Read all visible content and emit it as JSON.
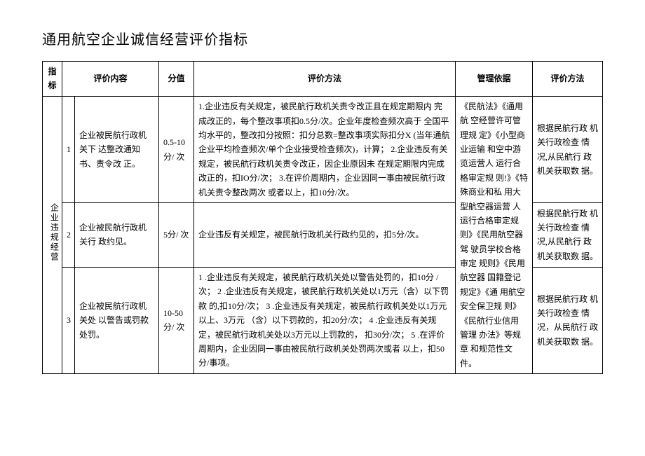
{
  "title": "通用航空企业诚信经营评价指标",
  "headers": {
    "indicator": "指标",
    "content": "评价内容",
    "score": "分值",
    "method": "评价方法",
    "basis": "管理依据",
    "method2": "评价方法"
  },
  "group_label": "企业违规经营",
  "rows": [
    {
      "num": "1",
      "content": "企业被民航行政机关下 达整改通知书、责令改 正。",
      "score": "0.5-10 分/ 次",
      "method": "1.企业违反有关规定，被民航行政机关责令改正且在规定期限内 完成改正的，每个整改事项扣0.5分/次。企业年度检查频次高于 全国平均水平的，整改扣分按照：扣分总数=整改事项实际扣分X (当年通航企业平均检查频次/单个企业接受检查频次)，计算；\n2.企业违反有关规定，被民航行政机关责令改正，因企业原因未 在规定期限内完成改正的，扣IO分/次；\n3.在评价周期内，企业因同一事由被民航行政机关责令整改两次 或者以上，扣10分/次。",
      "method2": "根据民航行政 机关行政检查 情况,从民航行 政机关获取数 据。"
    },
    {
      "num": "2",
      "content": "企业被民航行政机关行 政约见。",
      "score": "5分/ 次",
      "method": "企业违反有关规定，被民航行政机关行政约见的，扣5分/次。",
      "method2": "根据民航行政 机关行政检查 情况,从民航行 政机关获取数 据。"
    },
    {
      "num": "3",
      "content": "企业被民航行政机关处 以警告或罚款处罚。",
      "score": "10-50 分/ 次",
      "method": "1             .企业违反有关规定，被民航行政机关处以警告处罚的，扣10分 /次；\n2             .企业违反有关规定，被民航行政机关处以1万元（含）以下罚款 的,扣10分/次；\n3             .企业违反有关规定，被民航行政机关处以1万元以上、3万元 （含）以下罚款的，扣20分/次；\n4             .企业违反有关规定，被民航行政机关处以3万元以上罚款的， 扣30分/次；\n5             .在评价周期内，企业因同一事由被民航行政机关处罚两次或者 以上，扣50分/事项。",
      "method2": "根据民航行政 机关行政检查 情况，从民航行 政机关获取数 据。"
    }
  ],
  "basis_text": "《民航法》《通用航 空经营许可管理规 定》《小型商业运输 和空中游览运营人 运行合格审定规 则!》《特殊商业和私 用大型航空器运营 人运行合格审定规 则》《民用航空器驾 驶员学校合格审定 规则》《民用航空器 国籍登记规定》《通 用航空安全保卫规 则》《民航行业信用 管理 办法》等规章 和规范性文件。"
}
